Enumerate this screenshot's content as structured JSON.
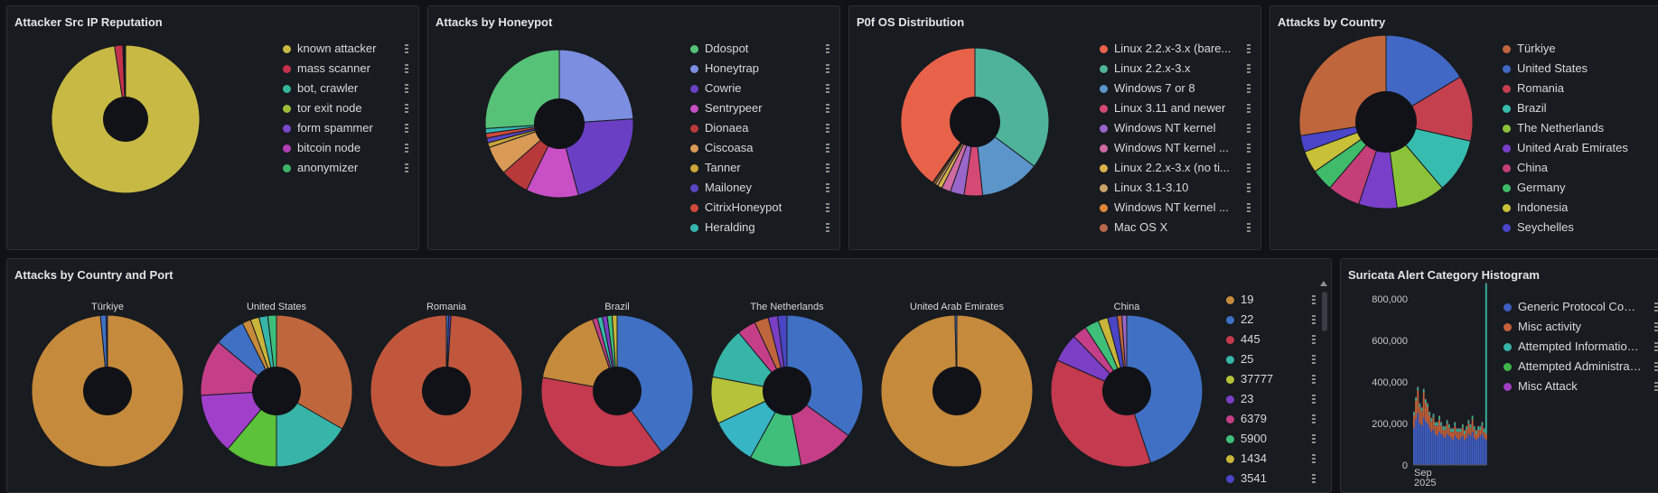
{
  "panels": {
    "reputation": {
      "title": "Attacker Src IP Reputation",
      "legend": [
        {
          "label": "known attacker",
          "color": "#c7b944"
        },
        {
          "label": "mass scanner",
          "color": "#c4314b"
        },
        {
          "label": "bot, crawler",
          "color": "#37b59b"
        },
        {
          "label": "tor exit node",
          "color": "#9ebc3a"
        },
        {
          "label": "form spammer",
          "color": "#7a47c9"
        },
        {
          "label": "bitcoin node",
          "color": "#b13fb5"
        },
        {
          "label": "anonymizer",
          "color": "#3fb56a"
        }
      ]
    },
    "honeypot": {
      "title": "Attacks by Honeypot",
      "legend": [
        {
          "label": "Ddospot",
          "color": "#56c278"
        },
        {
          "label": "Honeytrap",
          "color": "#7b8ee0"
        },
        {
          "label": "Cowrie",
          "color": "#6a3fc4"
        },
        {
          "label": "Sentrypeer",
          "color": "#c94fc4"
        },
        {
          "label": "Dionaea",
          "color": "#b8393a"
        },
        {
          "label": "Ciscoasa",
          "color": "#d99a56"
        },
        {
          "label": "Tanner",
          "color": "#c9a53a"
        },
        {
          "label": "Mailoney",
          "color": "#5a45c4"
        },
        {
          "label": "CitrixHoneypot",
          "color": "#d04a3a"
        },
        {
          "label": "Heralding",
          "color": "#35b5b0"
        }
      ]
    },
    "p0f": {
      "title": "P0f OS Distribution",
      "legend": [
        {
          "label": "Linux 2.2.x-3.x (bare...",
          "color": "#e8624a"
        },
        {
          "label": "Linux 2.2.x-3.x",
          "color": "#4fb39a"
        },
        {
          "label": "Windows 7 or 8",
          "color": "#5c95c9"
        },
        {
          "label": "Linux 3.11 and newer",
          "color": "#d44a75"
        },
        {
          "label": "Windows NT kernel",
          "color": "#9a66c9"
        },
        {
          "label": "Windows NT kernel ...",
          "color": "#d06aa2"
        },
        {
          "label": "Linux 2.2.x-3.x (no ti...",
          "color": "#d9b04a"
        },
        {
          "label": "Linux 3.1-3.10",
          "color": "#c9a06a"
        },
        {
          "label": "Windows NT kernel ...",
          "color": "#e0863a"
        },
        {
          "label": "Mac OS X",
          "color": "#b8684a"
        }
      ]
    },
    "country": {
      "title": "Attacks by Country",
      "legend": [
        {
          "label": "Türkiye",
          "color": "#c0663c"
        },
        {
          "label": "United States",
          "color": "#4168c4"
        },
        {
          "label": "Romania",
          "color": "#c4404e"
        },
        {
          "label": "Brazil",
          "color": "#37bdb0"
        },
        {
          "label": "The Netherlands",
          "color": "#8ac23a"
        },
        {
          "label": "United Arab Emirates",
          "color": "#7a3fc9"
        },
        {
          "label": "China",
          "color": "#c43f78"
        },
        {
          "label": "Germany",
          "color": "#3fbb6a"
        },
        {
          "label": "Indonesia",
          "color": "#c9c03a"
        },
        {
          "label": "Seychelles",
          "color": "#4a45c9"
        }
      ]
    },
    "country_port": {
      "title": "Attacks by Country and Port",
      "pies": [
        {
          "label": "Türkiye"
        },
        {
          "label": "United States"
        },
        {
          "label": "Romania"
        },
        {
          "label": "Brazil"
        },
        {
          "label": "The Netherlands"
        },
        {
          "label": "United Arab Emirates"
        },
        {
          "label": "China"
        }
      ],
      "legend": [
        {
          "label": "19",
          "color": "#c68a3c"
        },
        {
          "label": "22",
          "color": "#3f70c4"
        },
        {
          "label": "445",
          "color": "#c43a4e"
        },
        {
          "label": "25",
          "color": "#37b5a8"
        },
        {
          "label": "37777",
          "color": "#b5c23a"
        },
        {
          "label": "23",
          "color": "#7a3fc4"
        },
        {
          "label": "6379",
          "color": "#c43f88"
        },
        {
          "label": "5900",
          "color": "#3fbf7a"
        },
        {
          "label": "1434",
          "color": "#c9b53a"
        },
        {
          "label": "3541",
          "color": "#4a45c4"
        }
      ]
    },
    "suricata": {
      "title": "Suricata Alert Category Histogram",
      "yticks": [
        "800,000",
        "600,000",
        "400,000",
        "200,000",
        "0"
      ],
      "xtick": "Sep",
      "xtick2": "2025",
      "legend": [
        {
          "label": "Generic Protocol Comm...",
          "color": "#3f5ec4"
        },
        {
          "label": "Misc activity",
          "color": "#c4613a"
        },
        {
          "label": "Attempted Information L...",
          "color": "#37b5a8"
        },
        {
          "label": "Attempted Administrato...",
          "color": "#3fb54a"
        },
        {
          "label": "Misc Attack",
          "color": "#a03fc4"
        }
      ]
    }
  },
  "chart_data": [
    {
      "type": "pie",
      "title": "Attacker Src IP Reputation",
      "categories": [
        "known attacker",
        "mass scanner",
        "bot, crawler",
        "tor exit node",
        "form spammer",
        "bitcoin node",
        "anonymizer"
      ],
      "values": [
        97.6,
        1.8,
        0.2,
        0.1,
        0.1,
        0.1,
        0.1
      ]
    },
    {
      "type": "pie",
      "title": "Attacks by Honeypot",
      "categories": [
        "Ddospot",
        "Honeytrap",
        "Cowrie",
        "Sentrypeer",
        "Dionaea",
        "Ciscoasa",
        "Tanner",
        "Mailoney",
        "CitrixHoneypot",
        "Heralding"
      ],
      "values": [
        25,
        23,
        21,
        11,
        6,
        6,
        1,
        1,
        1,
        1
      ],
      "start_offset": -1
    },
    {
      "type": "pie",
      "title": "P0f OS Distribution",
      "categories": [
        "Linux 2.2.x-3.x (bare...",
        "Linux 2.2.x-3.x",
        "Windows 7 or 8",
        "Linux 3.11 and newer",
        "Windows NT kernel",
        "Windows NT kernel ...",
        "Linux 2.2.x-3.x (no ti...",
        "Linux 3.1-3.10",
        "Windows NT kernel ...",
        "Mac OS X"
      ],
      "values": [
        40,
        35,
        13,
        4,
        3,
        2,
        1,
        0.6,
        0.4,
        0.3
      ],
      "order": [
        1,
        2,
        3,
        4,
        5,
        6,
        7,
        8,
        9,
        0
      ]
    },
    {
      "type": "pie",
      "title": "Attacks by Country",
      "categories": [
        "Türkiye",
        "United States",
        "Romania",
        "Brazil",
        "The Netherlands",
        "United Arab Emirates",
        "China",
        "Germany",
        "Indonesia",
        "Seychelles"
      ],
      "values": [
        27,
        16,
        12,
        10,
        9,
        7,
        6,
        4,
        4,
        3
      ],
      "order": [
        1,
        2,
        3,
        4,
        5,
        6,
        7,
        8,
        9,
        0
      ]
    },
    {
      "type": "pie",
      "title": "Attacks by Country and Port",
      "ports": [
        "19",
        "22",
        "445",
        "25",
        "37777",
        "23",
        "6379",
        "5900",
        "1434",
        "3541"
      ],
      "pies": [
        {
          "label": "Türkiye",
          "values": [
            98.5,
            1.2,
            0,
            0,
            0,
            0,
            0,
            0,
            0,
            0.3
          ],
          "order": [
            0,
            1,
            9
          ]
        },
        {
          "label": "United States",
          "values": [
            0,
            1,
            0,
            18,
            2,
            14,
            13,
            0,
            3,
            2
          ],
          "other": [
            {
              "v": 36,
              "c": "#c0663c"
            },
            {
              "v": 12,
              "c": "#5cc23a"
            },
            {
              "v": 7,
              "c": "#3f70c4"
            },
            {
              "v": 2,
              "c": "#37b5a8"
            },
            {
              "v": 2,
              "c": "#3fbf7a"
            }
          ]
        },
        {
          "label": "Romania",
          "values": [
            0,
            0.5,
            0,
            0,
            0,
            0,
            0,
            0,
            0,
            0.5
          ],
          "other": [
            {
              "v": 99,
              "c": "#c0573c"
            }
          ]
        },
        {
          "label": "Brazil",
          "values": [
            16,
            38,
            36,
            1,
            0,
            1,
            1,
            1,
            1,
            0
          ],
          "other": [
            {
              "v": 1,
              "c": "#7a3fc4"
            }
          ]
        },
        {
          "label": "The Netherlands",
          "values": [
            0,
            35,
            0,
            11,
            10,
            4,
            12,
            11,
            0,
            3
          ],
          "other": [
            {
              "v": 10,
              "c": "#37b5c4"
            },
            {
              "v": 3,
              "c": "#c0663c"
            }
          ]
        },
        {
          "label": "United Arab Emirates",
          "values": [
            99.6,
            0.4,
            0,
            0,
            0,
            0,
            0,
            0,
            0,
            0
          ]
        },
        {
          "label": "China",
          "values": [
            0,
            44,
            36,
            0,
            0,
            6,
            3,
            3,
            2,
            2
          ],
          "other": [
            {
              "v": 1,
              "c": "#c0663c"
            },
            {
              "v": 1,
              "c": "#9a66c9"
            },
            {
              "v": 2,
              "c": "#7a3fc4"
            }
          ]
        }
      ]
    },
    {
      "type": "bar",
      "title": "Suricata Alert Category Histogram",
      "ylim": [
        0,
        800000
      ],
      "series": [
        {
          "name": "Generic Protocol Comm...",
          "values": [
            180000,
            220000,
            250000,
            200000,
            190000,
            230000,
            210000,
            200000,
            180000,
            160000,
            170000,
            150000,
            140000,
            160000,
            150000,
            140000,
            130000,
            150000,
            140000,
            130000,
            120000,
            140000,
            130000,
            120000,
            130000,
            140000,
            120000,
            130000,
            150000,
            140000,
            160000,
            130000,
            120000,
            130000,
            140000,
            150000,
            130000,
            120000
          ]
        },
        {
          "name": "Misc activity",
          "values": [
            60000,
            90000,
            110000,
            80000,
            70000,
            120000,
            90000,
            80000,
            60000,
            50000,
            60000,
            40000,
            50000,
            60000,
            40000,
            30000,
            40000,
            50000,
            40000,
            30000,
            40000,
            50000,
            30000,
            40000,
            30000,
            40000,
            30000,
            40000,
            50000,
            40000,
            60000,
            40000,
            30000,
            40000,
            30000,
            40000,
            30000,
            30000
          ]
        },
        {
          "name": "Attempted Information L...",
          "values": [
            10000,
            10000,
            10000,
            10000,
            10000,
            10000,
            10000,
            10000,
            10000,
            10000,
            10000,
            10000,
            10000,
            10000,
            10000,
            10000,
            10000,
            10000,
            10000,
            10000,
            10000,
            10000,
            10000,
            10000,
            10000,
            10000,
            10000,
            10000,
            10000,
            10000,
            10000,
            10000,
            10000,
            10000,
            10000,
            10000,
            10000,
            720000
          ]
        },
        {
          "name": "Attempted Administrato...",
          "values": [
            5000,
            5000,
            5000,
            5000,
            5000,
            5000,
            5000,
            5000,
            5000,
            5000,
            5000,
            5000,
            5000,
            5000,
            5000,
            5000,
            5000,
            5000,
            5000,
            5000,
            5000,
            5000,
            5000,
            5000,
            5000,
            5000,
            5000,
            5000,
            5000,
            5000,
            5000,
            5000,
            5000,
            5000,
            5000,
            5000,
            5000,
            5000
          ]
        },
        {
          "name": "Misc Attack",
          "values": [
            3000,
            3000,
            3000,
            3000,
            3000,
            3000,
            3000,
            3000,
            3000,
            3000,
            3000,
            3000,
            3000,
            3000,
            3000,
            3000,
            3000,
            3000,
            3000,
            3000,
            3000,
            3000,
            3000,
            3000,
            3000,
            3000,
            3000,
            3000,
            3000,
            3000,
            3000,
            3000,
            3000,
            3000,
            3000,
            3000,
            3000,
            3000
          ]
        }
      ]
    }
  ]
}
